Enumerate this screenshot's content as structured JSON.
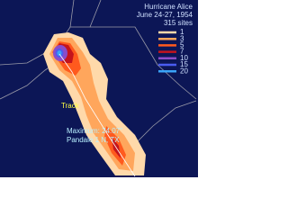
{
  "header": {
    "title": "Hurricane Alice",
    "dates": "June 24-27, 1954",
    "sites": "315 sites"
  },
  "legend": {
    "items": [
      {
        "label": 1,
        "color": "#ffd9aa"
      },
      {
        "label": 3,
        "color": "#ffa65c"
      },
      {
        "label": 5,
        "color": "#ff5a1e"
      },
      {
        "label": 7,
        "color": "#c4141c"
      },
      {
        "label": 10,
        "color": "#8a4cc8"
      },
      {
        "label": 15,
        "color": "#4a5cf0"
      },
      {
        "label": 20,
        "color": "#3aa4f8"
      }
    ]
  },
  "annotations": {
    "track": "Track",
    "maximum": "Maximum: 24.07\"",
    "location": "Pandale 1 N, TX"
  }
}
